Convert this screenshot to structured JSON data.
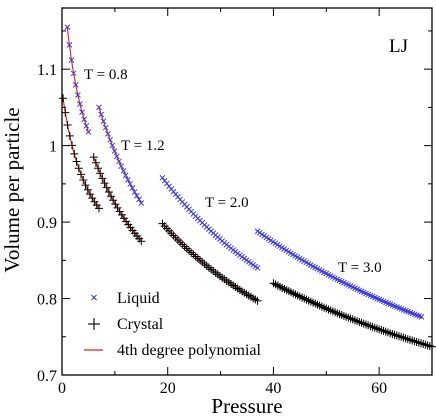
{
  "chart_data": {
    "type": "scatter",
    "title": "",
    "corner_label": "LJ",
    "xlabel": "Pressure",
    "ylabel": "Volume per particle",
    "xlim": [
      0,
      70
    ],
    "ylim": [
      0.7,
      1.18
    ],
    "xticks": [
      0,
      20,
      40,
      60
    ],
    "xtick_labels": [
      "0",
      "20",
      "40",
      "60"
    ],
    "yticks": [
      0.7,
      0.8,
      0.9,
      1.0,
      1.1
    ],
    "ytick_labels": [
      "0.7",
      "0.8",
      "0.9",
      "1",
      "1.1"
    ],
    "grid": false,
    "legend_position": "bottom-left",
    "legend": [
      {
        "label": "Liquid",
        "marker": "x",
        "color": "#3b3bdc"
      },
      {
        "label": "Crystal",
        "marker": "+",
        "color": "#000000"
      },
      {
        "label": "4th degree polynomial",
        "marker": "line",
        "color": "#d81e1e"
      }
    ],
    "annotations": [
      {
        "text": "T = 0.8",
        "x": 4,
        "y": 1.085
      },
      {
        "text": "T = 1.2",
        "x": 11,
        "y": 1.0
      },
      {
        "text": "T = 2.0",
        "x": 27,
        "y": 0.922
      },
      {
        "text": "T = 3.0",
        "x": 52,
        "y": 0.837
      }
    ],
    "series": [
      {
        "name": "Liquid",
        "temperature": "0.8",
        "marker": "x",
        "x_range": [
          1,
          5
        ],
        "y_range": [
          1.155,
          1.018
        ]
      },
      {
        "name": "Liquid",
        "temperature": "1.2",
        "marker": "x",
        "x_range": [
          7,
          15
        ],
        "y_range": [
          1.05,
          0.925
        ]
      },
      {
        "name": "Liquid",
        "temperature": "2.0",
        "marker": "x",
        "x_range": [
          19,
          37
        ],
        "y_range": [
          0.958,
          0.84
        ]
      },
      {
        "name": "Liquid",
        "temperature": "3.0",
        "marker": "x",
        "x_range": [
          37,
          68
        ],
        "y_range": [
          0.888,
          0.776
        ]
      },
      {
        "name": "Crystal",
        "temperature": "0.8",
        "marker": "+",
        "x_range": [
          0.2,
          7
        ],
        "y_range": [
          1.062,
          0.918
        ]
      },
      {
        "name": "Crystal",
        "temperature": "1.2",
        "marker": "+",
        "x_range": [
          6,
          15
        ],
        "y_range": [
          0.985,
          0.875
        ]
      },
      {
        "name": "Crystal",
        "temperature": "2.0",
        "marker": "+",
        "x_range": [
          19,
          37
        ],
        "y_range": [
          0.898,
          0.797
        ]
      },
      {
        "name": "Crystal",
        "temperature": "3.0",
        "marker": "+",
        "x_range": [
          40,
          70
        ],
        "y_range": [
          0.82,
          0.737
        ]
      }
    ],
    "colors": {
      "liquid": "#3b3bdc",
      "crystal": "#000000",
      "fit": "#d81e1e"
    }
  }
}
